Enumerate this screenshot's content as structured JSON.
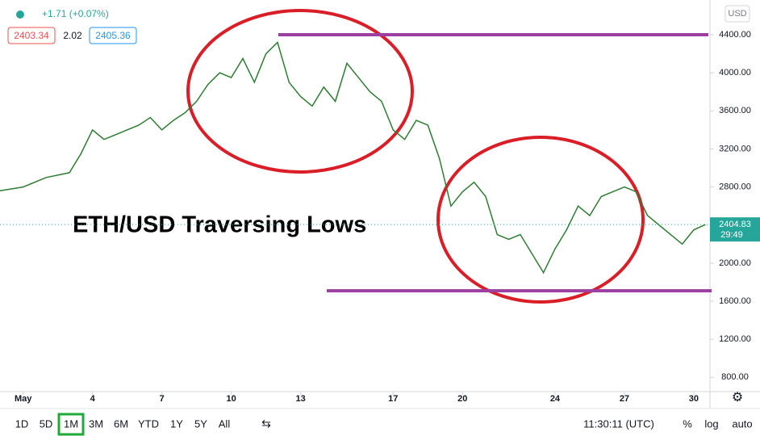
{
  "chart_data": {
    "type": "line",
    "title": "ETH/USD Traversing Lows",
    "x": [
      0,
      1,
      2,
      3,
      3.5,
      4,
      4.5,
      5,
      6,
      6.5,
      7,
      7.5,
      8,
      8.5,
      9,
      9.5,
      10,
      10.5,
      11,
      11.5,
      12,
      12.5,
      13,
      13.5,
      14,
      14.5,
      15,
      15.5,
      16,
      16.5,
      17,
      17.5,
      18,
      18.5,
      19,
      19.5,
      20,
      20.5,
      21,
      21.5,
      22,
      22.5,
      23,
      23.5,
      24,
      24.5,
      25,
      25.5,
      26,
      26.5,
      27,
      27.5,
      28,
      28.5,
      29,
      29.5,
      30,
      30.5
    ],
    "values": [
      2760,
      2800,
      2900,
      2950,
      3150,
      3400,
      3300,
      3350,
      3450,
      3530,
      3400,
      3500,
      3580,
      3700,
      3880,
      4000,
      3950,
      4150,
      3900,
      4200,
      4320,
      3900,
      3750,
      3650,
      3850,
      3700,
      4100,
      3950,
      3800,
      3700,
      3400,
      3300,
      3500,
      3450,
      3100,
      2600,
      2750,
      2850,
      2700,
      2300,
      2250,
      2300,
      2100,
      1900,
      2150,
      2350,
      2600,
      2500,
      2700,
      2750,
      2800,
      2750,
      2500,
      2400,
      2300,
      2200,
      2350,
      2404.83
    ],
    "color": "#2e7d32",
    "xlim": [
      0,
      30.7
    ],
    "ylim": [
      650,
      4765
    ],
    "xticks": [
      {
        "value": 1,
        "label": "May"
      },
      4,
      7,
      10,
      13,
      17,
      20,
      24,
      27,
      30
    ],
    "yticks": [
      {
        "value": 4400,
        "label": "4400.00"
      },
      {
        "value": 4000,
        "label": "4000.00"
      },
      {
        "value": 3600,
        "label": "3600.00"
      },
      {
        "value": 3200,
        "label": "3200.00"
      },
      {
        "value": 2800,
        "label": "2800.00"
      },
      {
        "value": 2000,
        "label": "2000.00"
      },
      {
        "value": 1600,
        "label": "1600.00"
      },
      {
        "value": 1200,
        "label": "1200.00"
      },
      {
        "value": 800,
        "label": "800.00"
      }
    ],
    "levels": [
      4400,
      1710
    ],
    "level_color": "#9c3fa0",
    "last_price": 2404.83,
    "countdown": "29:49",
    "currency": "USD"
  },
  "header": {
    "change": "+1.71 (+0.07%)",
    "bid": "2403.34",
    "spread": "2.02",
    "ask": "2405.36"
  },
  "toolbar": {
    "ranges": [
      "1D",
      "5D",
      "1M",
      "3M",
      "6M",
      "YTD",
      "1Y",
      "5Y",
      "All"
    ],
    "selected": 2,
    "time": "11:30:11 (UTC)",
    "percent": "%",
    "log": "log",
    "auto": "auto"
  }
}
